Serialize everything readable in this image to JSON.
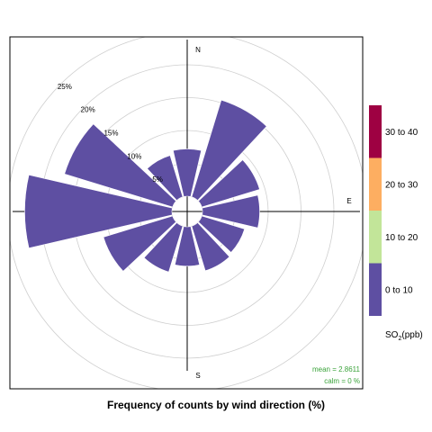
{
  "chart_data": {
    "type": "polar-bar",
    "title": "Frequency of counts by wind direction (%)",
    "directions": [
      0,
      30,
      60,
      90,
      120,
      150,
      180,
      210,
      240,
      270,
      300,
      330
    ],
    "compass_labels": {
      "n": "N",
      "e": "E",
      "s": "S"
    },
    "series": [
      {
        "name": "0 to 10",
        "values": [
          7.2,
          15.4,
          9.2,
          8.7,
          6.8,
          7.1,
          6.0,
          7.3,
          11.0,
          22.4,
          17.2,
          6.6
        ]
      }
    ],
    "ring_values": [
      5,
      10,
      15,
      20,
      25
    ],
    "ring_labels": [
      "5%",
      "10%",
      "15%",
      "20%",
      "25%"
    ],
    "rmax": 25,
    "stats": {
      "mean": "mean =  2.8611",
      "calm": "calm =  0 %"
    },
    "legend": {
      "title_main": "SO",
      "title_sub": "2",
      "title_unit": "(ppb)",
      "items": [
        {
          "label": "30 to 40",
          "color": "#9e0142"
        },
        {
          "label": "20 to 30",
          "color": "#fdae61"
        },
        {
          "label": "10 to 20",
          "color": "#c2e599"
        },
        {
          "label": "0 to 10",
          "color": "#5e4fa2"
        }
      ]
    }
  }
}
